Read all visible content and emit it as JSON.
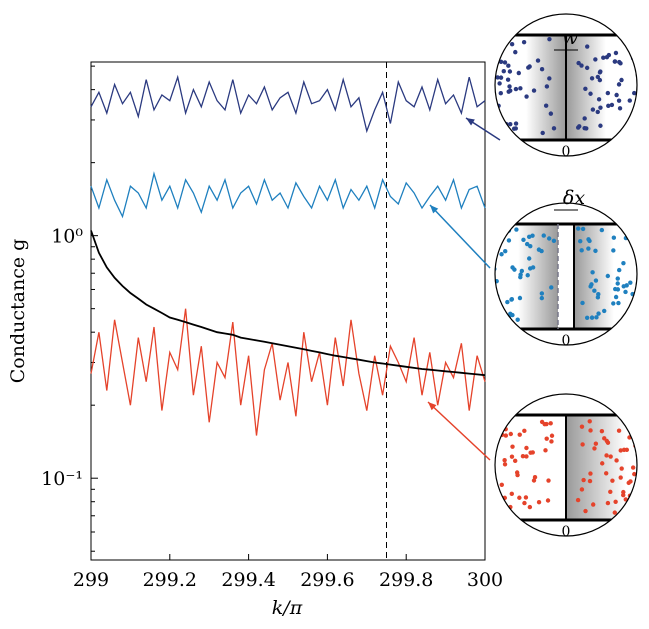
{
  "chart_data": {
    "type": "line",
    "x_label": "k/π",
    "y_label": "Conductance g",
    "x": [
      299.0,
      299.02,
      299.04,
      299.06,
      299.08,
      299.1,
      299.12,
      299.14,
      299.16,
      299.18,
      299.2,
      299.22,
      299.24,
      299.26,
      299.28,
      299.3,
      299.32,
      299.34,
      299.36,
      299.38,
      299.4,
      299.42,
      299.44,
      299.46,
      299.48,
      299.5,
      299.52,
      299.54,
      299.56,
      299.58,
      299.6,
      299.62,
      299.64,
      299.66,
      299.68,
      299.7,
      299.72,
      299.74,
      299.76,
      299.78,
      299.8,
      299.82,
      299.84,
      299.86,
      299.88,
      299.9,
      299.92,
      299.94,
      299.96,
      299.98,
      300.0
    ],
    "series": [
      {
        "color": "#2b3a80",
        "values": [
          3.4,
          3.9,
          3.2,
          4.2,
          3.5,
          3.9,
          3.1,
          4.4,
          3.3,
          3.8,
          3.6,
          4.5,
          3.2,
          4.0,
          3.4,
          4.3,
          3.6,
          3.3,
          4.4,
          3.2,
          3.8,
          3.5,
          4.1,
          3.3,
          3.7,
          3.9,
          3.2,
          4.3,
          3.5,
          3.6,
          4.0,
          3.3,
          4.4,
          3.4,
          3.7,
          2.7,
          3.3,
          3.9,
          2.9,
          4.3,
          3.6,
          3.4,
          4.1,
          3.3,
          4.4,
          3.5,
          3.8,
          3.2,
          4.5,
          3.4,
          3.6
        ]
      },
      {
        "color": "#1f80bf",
        "values": [
          1.6,
          1.3,
          1.7,
          1.4,
          1.2,
          1.6,
          1.5,
          1.3,
          1.8,
          1.4,
          1.6,
          1.3,
          1.7,
          1.5,
          1.25,
          1.6,
          1.4,
          1.7,
          1.3,
          1.5,
          1.6,
          1.35,
          1.7,
          1.4,
          1.5,
          1.3,
          1.65,
          1.45,
          1.3,
          1.6,
          1.4,
          1.7,
          1.3,
          1.55,
          1.4,
          1.6,
          1.3,
          1.7,
          1.45,
          1.35,
          1.65,
          1.5,
          1.3,
          1.45,
          1.6,
          1.4,
          1.7,
          1.3,
          1.55,
          1.6,
          1.3
        ]
      },
      {
        "color": "#e5432b",
        "values": [
          0.27,
          0.4,
          0.23,
          0.45,
          0.3,
          0.2,
          0.38,
          0.25,
          0.42,
          0.19,
          0.33,
          0.28,
          0.5,
          0.22,
          0.35,
          0.17,
          0.3,
          0.26,
          0.44,
          0.2,
          0.32,
          0.15,
          0.28,
          0.36,
          0.21,
          0.3,
          0.18,
          0.4,
          0.25,
          0.33,
          0.2,
          0.38,
          0.24,
          0.45,
          0.27,
          0.19,
          0.32,
          0.22,
          0.35,
          0.3,
          0.25,
          0.38,
          0.22,
          0.33,
          0.2,
          0.3,
          0.26,
          0.36,
          0.19,
          0.32,
          0.25
        ]
      },
      {
        "color": "#000000",
        "values": [
          1.05,
          0.85,
          0.74,
          0.67,
          0.62,
          0.58,
          0.55,
          0.52,
          0.5,
          0.48,
          0.46,
          0.45,
          0.44,
          0.43,
          0.42,
          0.41,
          0.4,
          0.395,
          0.39,
          0.38,
          0.375,
          0.37,
          0.365,
          0.36,
          0.355,
          0.35,
          0.345,
          0.34,
          0.335,
          0.33,
          0.325,
          0.32,
          0.316,
          0.312,
          0.308,
          0.304,
          0.3,
          0.297,
          0.294,
          0.291,
          0.288,
          0.285,
          0.282,
          0.28,
          0.278,
          0.276,
          0.274,
          0.272,
          0.27,
          0.268,
          0.266
        ]
      }
    ],
    "xlim": [
      299,
      300
    ],
    "xticks": [
      299,
      299.2,
      299.4,
      299.6,
      299.8,
      300
    ],
    "ylim": [
      0.046,
      5.2
    ],
    "log_y": true,
    "yticks": [
      {
        "value": 0.1,
        "label": "10⁻¹"
      },
      {
        "value": 1,
        "label": "10⁰"
      }
    ],
    "yminorticks": [
      0.05,
      0.06,
      0.07,
      0.08,
      0.09,
      0.2,
      0.3,
      0.4,
      0.5,
      0.6,
      0.7,
      0.8,
      0.9,
      2,
      3,
      4,
      5
    ],
    "vline": 299.75,
    "inset_labels": [
      "w",
      "δx"
    ],
    "inset_origin_labels": [
      "0",
      "0",
      "0"
    ]
  }
}
